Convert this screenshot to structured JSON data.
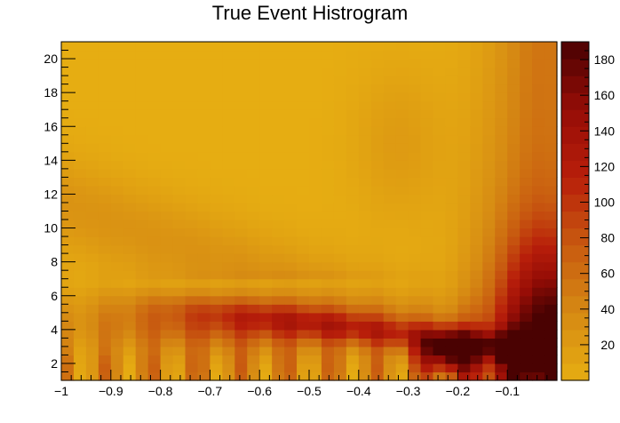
{
  "chart_data": {
    "type": "heatmap",
    "title": "True Event Histrogram",
    "xlabel": "",
    "ylabel": "",
    "xlim": [
      -1,
      0
    ],
    "ylim": [
      1,
      21
    ],
    "x_bins": 40,
    "y_bins": 40,
    "x_ticks": [
      -1,
      -0.9,
      -0.8,
      -0.7,
      -0.6,
      -0.5,
      -0.4,
      -0.3,
      -0.2,
      -0.1
    ],
    "x_tick_labels": [
      "−1",
      "−0.9",
      "−0.8",
      "−0.7",
      "−0.6",
      "−0.5",
      "−0.4",
      "−0.3",
      "−0.2",
      "−0.1"
    ],
    "y_ticks": [
      2,
      4,
      6,
      8,
      10,
      12,
      14,
      16,
      18,
      20
    ],
    "y_tick_labels": [
      "2",
      "4",
      "6",
      "8",
      "10",
      "12",
      "14",
      "16",
      "18",
      "20"
    ],
    "colorbar": {
      "range": [
        0,
        190
      ],
      "ticks": [
        20,
        40,
        60,
        80,
        100,
        120,
        140,
        160,
        180
      ],
      "tick_labels": [
        "20",
        "40",
        "60",
        "80",
        "100",
        "120",
        "140",
        "160",
        "180"
      ]
    },
    "color_stops": [
      "#e6ad12",
      "#d68a13",
      "#c85a10",
      "#b81e0a",
      "#960d06",
      "#4a0202"
    ],
    "description_of_pattern": ""
  }
}
